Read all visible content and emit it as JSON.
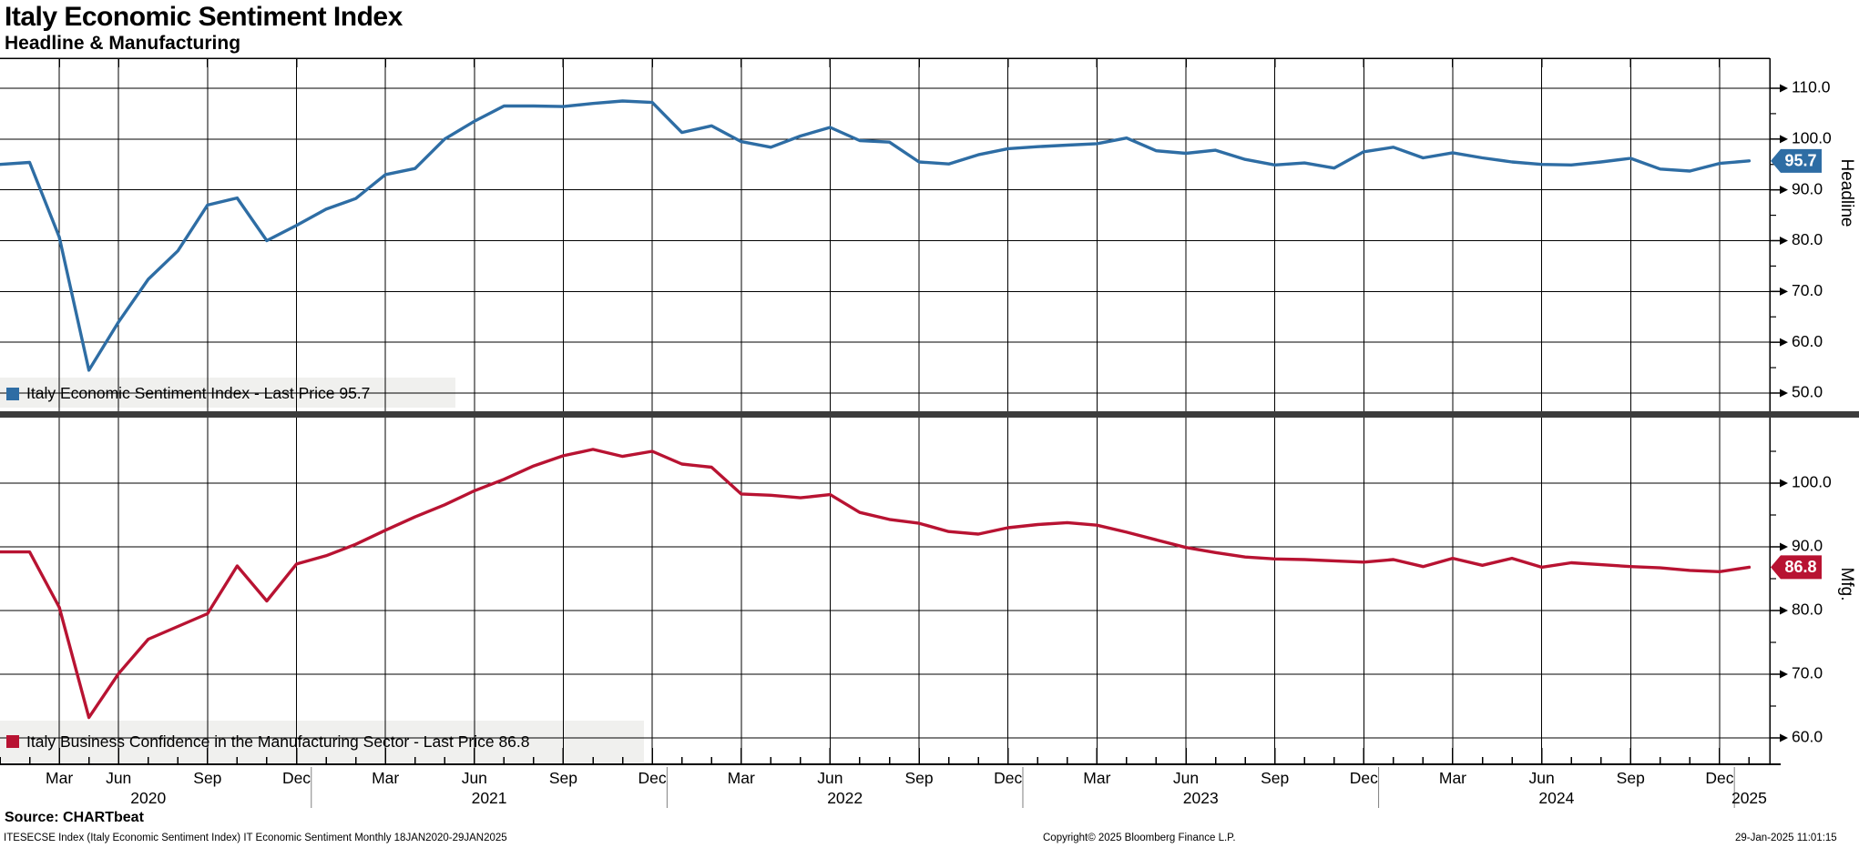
{
  "header": {
    "title": "Italy Economic Sentiment Index",
    "subtitle": "Headline & Manufacturing"
  },
  "legends": {
    "headline": {
      "label": "Italy Economic Sentiment Index - Last Price 95.7"
    },
    "mfg": {
      "label": "Italy Business Confidence in the Manufacturing Sector - Last Price 86.8"
    }
  },
  "footer": {
    "source": "Source: CHARTbeat",
    "description": "ITESECSE Index (Italy Economic Sentiment Index) IT Economic Sentiment  Monthly 18JAN2020-29JAN2025",
    "copyright": "Copyright© 2025 Bloomberg Finance L.P.",
    "timestamp": "29-Jan-2025 11:01:15"
  },
  "colors": {
    "headline": "#2e6da4",
    "mfg": "#b81332",
    "grid": "#000000",
    "axis": "#000000",
    "divider": "#3c3c3c",
    "legend_bg": "#f0f0ee",
    "badge_text": "#ffffff",
    "year_separator": "#808080"
  },
  "chart_data": {
    "type": "line",
    "title": "Italy Economic Sentiment Index - Headline & Manufacturing",
    "x_categories": [
      "2020-01",
      "2020-02",
      "2020-03",
      "2020-05",
      "2020-06",
      "2020-07",
      "2020-08",
      "2020-09",
      "2020-10",
      "2020-11",
      "2020-12",
      "2021-01",
      "2021-02",
      "2021-03",
      "2021-04",
      "2021-05",
      "2021-06",
      "2021-07",
      "2021-08",
      "2021-09",
      "2021-10",
      "2021-11",
      "2021-12",
      "2022-01",
      "2022-02",
      "2022-03",
      "2022-04",
      "2022-05",
      "2022-06",
      "2022-07",
      "2022-08",
      "2022-09",
      "2022-10",
      "2022-11",
      "2022-12",
      "2023-01",
      "2023-02",
      "2023-03",
      "2023-04",
      "2023-05",
      "2023-06",
      "2023-07",
      "2023-08",
      "2023-09",
      "2023-10",
      "2023-11",
      "2023-12",
      "2024-01",
      "2024-02",
      "2024-03",
      "2024-04",
      "2024-05",
      "2024-06",
      "2024-07",
      "2024-08",
      "2024-09",
      "2024-10",
      "2024-11",
      "2024-12",
      "2025-01"
    ],
    "x_month_tick_names": [
      "Mar",
      "Jun",
      "Sep",
      "Dec"
    ],
    "year_labels": [
      "2020",
      "2021",
      "2022",
      "2023",
      "2024",
      "2025"
    ],
    "series": [
      {
        "name": "Italy Economic Sentiment Index",
        "panel": "headline",
        "last_price": 95.7,
        "values": [
          95.0,
          95.4,
          80.7,
          54.5,
          64.0,
          72.4,
          78.0,
          87.0,
          88.4,
          80.0,
          83.0,
          86.2,
          88.3,
          93.0,
          94.2,
          100.0,
          103.5,
          106.5,
          106.5,
          106.4,
          107.0,
          107.5,
          107.2,
          101.3,
          102.6,
          99.5,
          98.4,
          100.6,
          102.3,
          99.7,
          99.4,
          95.5,
          95.1,
          96.9,
          98.1,
          98.5,
          98.8,
          99.1,
          100.2,
          97.7,
          97.2,
          97.8,
          96.0,
          94.9,
          95.3,
          94.3,
          97.5,
          98.4,
          96.3,
          97.3,
          96.3,
          95.5,
          95.0,
          94.9,
          95.5,
          96.2,
          94.1,
          93.7,
          95.2,
          95.7
        ]
      },
      {
        "name": "Italy Business Confidence in the Manufacturing Sector",
        "panel": "mfg",
        "last_price": 86.8,
        "values": [
          89.2,
          89.2,
          80.5,
          63.2,
          70.1,
          75.5,
          77.5,
          79.5,
          87.0,
          81.5,
          87.3,
          88.6,
          90.4,
          92.6,
          94.7,
          96.6,
          98.8,
          100.6,
          102.7,
          104.3,
          105.3,
          104.2,
          105.0,
          103.0,
          102.5,
          98.3,
          98.1,
          97.7,
          98.2,
          95.4,
          94.3,
          93.7,
          92.4,
          92.0,
          93.0,
          93.5,
          93.8,
          93.4,
          92.3,
          91.1,
          89.9,
          89.1,
          88.4,
          88.1,
          88.0,
          87.8,
          87.6,
          88.0,
          86.9,
          88.2,
          87.1,
          88.2,
          86.8,
          87.5,
          87.2,
          86.9,
          86.7,
          86.3,
          86.1,
          86.8
        ]
      }
    ],
    "panels": [
      {
        "id": "headline",
        "axis_title": "Headline",
        "y_ticks": [
          110,
          100,
          90,
          80,
          70,
          60,
          50
        ],
        "y_minor_ticks": [
          105,
          95,
          85,
          75,
          65,
          55
        ],
        "ylim": [
          46,
          116
        ],
        "grid": true,
        "legend_position": "bottom-left"
      },
      {
        "id": "mfg",
        "axis_title": "Mfg.",
        "y_ticks": [
          100,
          90,
          80,
          70,
          60
        ],
        "y_minor_ticks": [
          105,
          95,
          85,
          75,
          65
        ],
        "ylim": [
          56,
          110
        ],
        "grid": true,
        "legend_position": "bottom-left"
      }
    ]
  }
}
